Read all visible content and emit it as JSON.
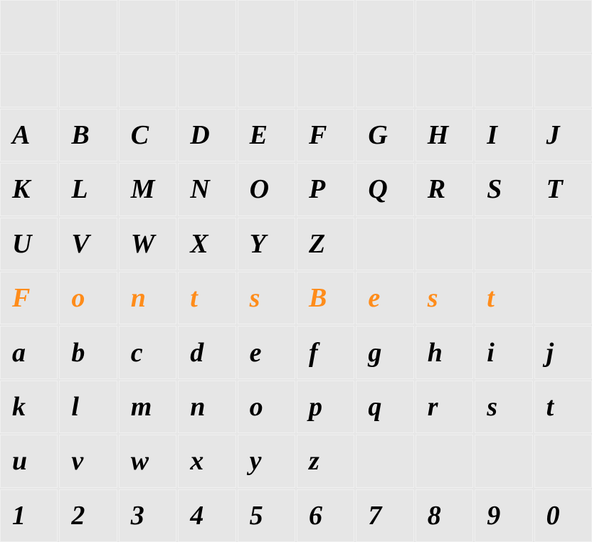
{
  "grid": {
    "rows": 10,
    "cols": 10,
    "background_color": "#e6e6e6",
    "border_color": "#f0f0f0",
    "font_size": 38,
    "font_weight": "bold",
    "font_style": "italic",
    "text_color": "#000000",
    "highlight_color": "#ff8c1a"
  },
  "cells": [
    [
      null,
      null,
      null,
      null,
      null,
      null,
      null,
      null,
      null,
      null
    ],
    [
      null,
      null,
      null,
      null,
      null,
      null,
      null,
      null,
      null,
      null
    ],
    [
      "A",
      "B",
      "C",
      "D",
      "E",
      "F",
      "G",
      "H",
      "I",
      "J"
    ],
    [
      "K",
      "L",
      "M",
      "N",
      "O",
      "P",
      "Q",
      "R",
      "S",
      "T"
    ],
    [
      "U",
      "V",
      "W",
      "X",
      "Y",
      "Z",
      null,
      null,
      null,
      null
    ],
    [
      "F",
      "o",
      "n",
      "t",
      "s",
      "B",
      "e",
      "s",
      "t",
      null
    ],
    [
      "a",
      "b",
      "c",
      "d",
      "e",
      "f",
      "g",
      "h",
      "i",
      "j"
    ],
    [
      "k",
      "l",
      "m",
      "n",
      "o",
      "p",
      "q",
      "r",
      "s",
      "t"
    ],
    [
      "u",
      "v",
      "w",
      "x",
      "y",
      "z",
      null,
      null,
      null,
      null
    ],
    [
      "1",
      "2",
      "3",
      "4",
      "5",
      "6",
      "7",
      "8",
      "9",
      "0"
    ]
  ],
  "highlight_rows": [
    5
  ]
}
